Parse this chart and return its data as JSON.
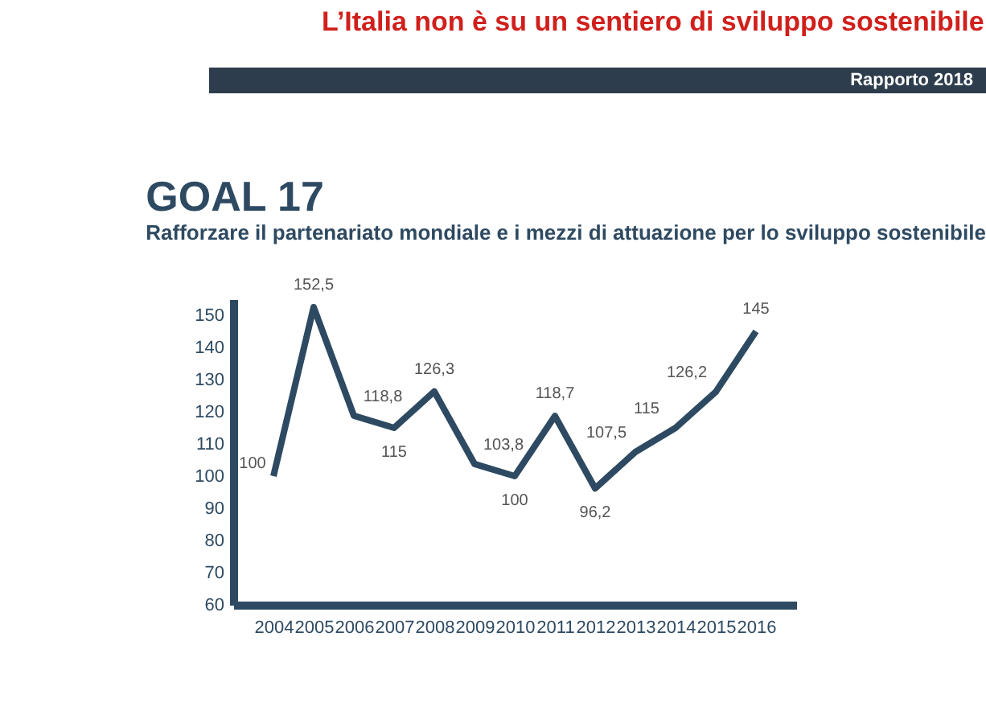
{
  "chart_data": {
    "type": "line",
    "title": "GOAL 17",
    "subtitle": "Rafforzare il partenariato mondiale e i mezzi di attuazione per lo sviluppo sostenibile",
    "annotations": [
      "L’Italia non è su un sentiero di sviluppo sostenibile",
      "Rapporto 2018"
    ],
    "categories": [
      "2004",
      "2005",
      "2006",
      "2007",
      "2008",
      "2009",
      "2010",
      "2011",
      "2012",
      "2013",
      "2014",
      "2015",
      "2016"
    ],
    "series": [
      {
        "color": "#2e4a62",
        "values": [
          100,
          152.5,
          118.8,
          115,
          126.3,
          103.8,
          100,
          118.7,
          96.2,
          107.5,
          115,
          126.2,
          145
        ]
      }
    ],
    "value_labels": [
      "100",
      "152,5",
      "118,8",
      "115",
      "126,3",
      "103,8",
      "100",
      "118,7",
      "96,2",
      "107,5",
      "115",
      "126,2",
      "145"
    ],
    "ylim": [
      60,
      155
    ],
    "yticks": [
      60,
      70,
      80,
      90,
      100,
      110,
      120,
      130,
      140,
      150
    ],
    "grid": false,
    "legend": false,
    "marker": "none",
    "line_style": "solid"
  }
}
